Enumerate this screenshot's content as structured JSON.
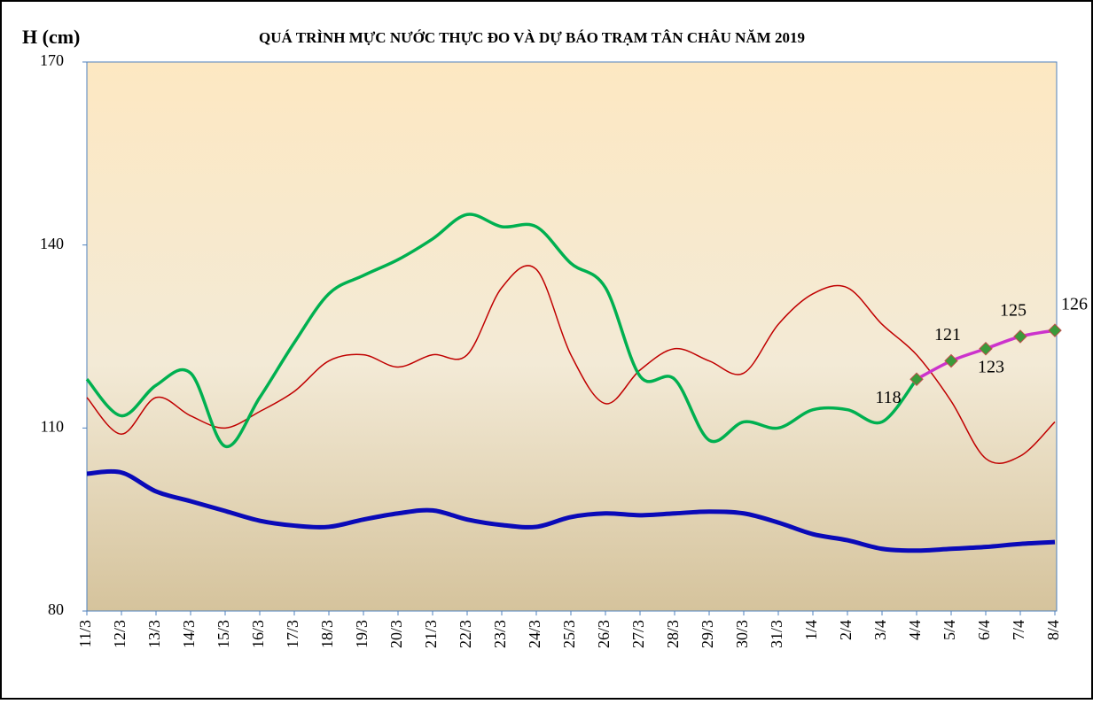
{
  "chart_data": {
    "type": "line",
    "title": "QUÁ TRÌNH MỰC NƯỚC THỰC ĐO VÀ DỰ BÁO TRẠM TÂN CHÂU NĂM 2019",
    "y_label": "H (cm)",
    "categories": [
      "11/3",
      "12/3",
      "13/3",
      "14/3",
      "15/3",
      "16/3",
      "17/3",
      "18/3",
      "19/3",
      "20/3",
      "21/3",
      "22/3",
      "23/3",
      "24/3",
      "25/3",
      "26/3",
      "27/3",
      "28/3",
      "29/3",
      "30/3",
      "31/3",
      "1/4",
      "2/4",
      "3/4",
      "4/4",
      "5/4",
      "6/4",
      "7/4",
      "8/4"
    ],
    "series": [
      {
        "color": "#c00000",
        "width": 1.5,
        "values": [
          115,
          109,
          115,
          112,
          110,
          112.7,
          116,
          121,
          122,
          120,
          122,
          122,
          133,
          136,
          122,
          114,
          119.5,
          123,
          121,
          119,
          127,
          132,
          133,
          127,
          122,
          114.4,
          105,
          105.4,
          111
        ]
      },
      {
        "color": "#0a0ab8",
        "width": 5,
        "values": [
          102.5,
          102.7,
          99.6,
          98,
          96.4,
          94.8,
          94,
          93.8,
          95,
          96,
          96.5,
          95,
          94.1,
          93.8,
          95.4,
          96,
          95.7,
          96,
          96.3,
          96,
          94.5,
          92.6,
          91.6,
          90.2,
          89.9,
          90.2,
          90.5,
          91,
          91.3
        ]
      },
      {
        "color": "#00b050",
        "width": 3.5,
        "values": [
          118,
          112,
          117,
          119,
          107,
          115,
          124,
          132,
          135,
          137.6,
          141,
          145,
          143,
          143,
          137,
          133,
          118.5,
          118,
          108,
          111,
          110,
          113,
          113,
          111,
          118,
          null,
          null,
          null,
          null
        ]
      },
      {
        "color": "#cc33cc",
        "width": 3.5,
        "marker_color": "#3a9a3a",
        "data_labels": true,
        "values": [
          null,
          null,
          null,
          null,
          null,
          null,
          null,
          null,
          null,
          null,
          null,
          null,
          null,
          null,
          null,
          null,
          null,
          null,
          null,
          null,
          null,
          null,
          null,
          null,
          118,
          121,
          123,
          125,
          126
        ]
      }
    ],
    "ylim": [
      80,
      170
    ],
    "yticks": [
      80,
      110,
      140,
      170
    ]
  }
}
